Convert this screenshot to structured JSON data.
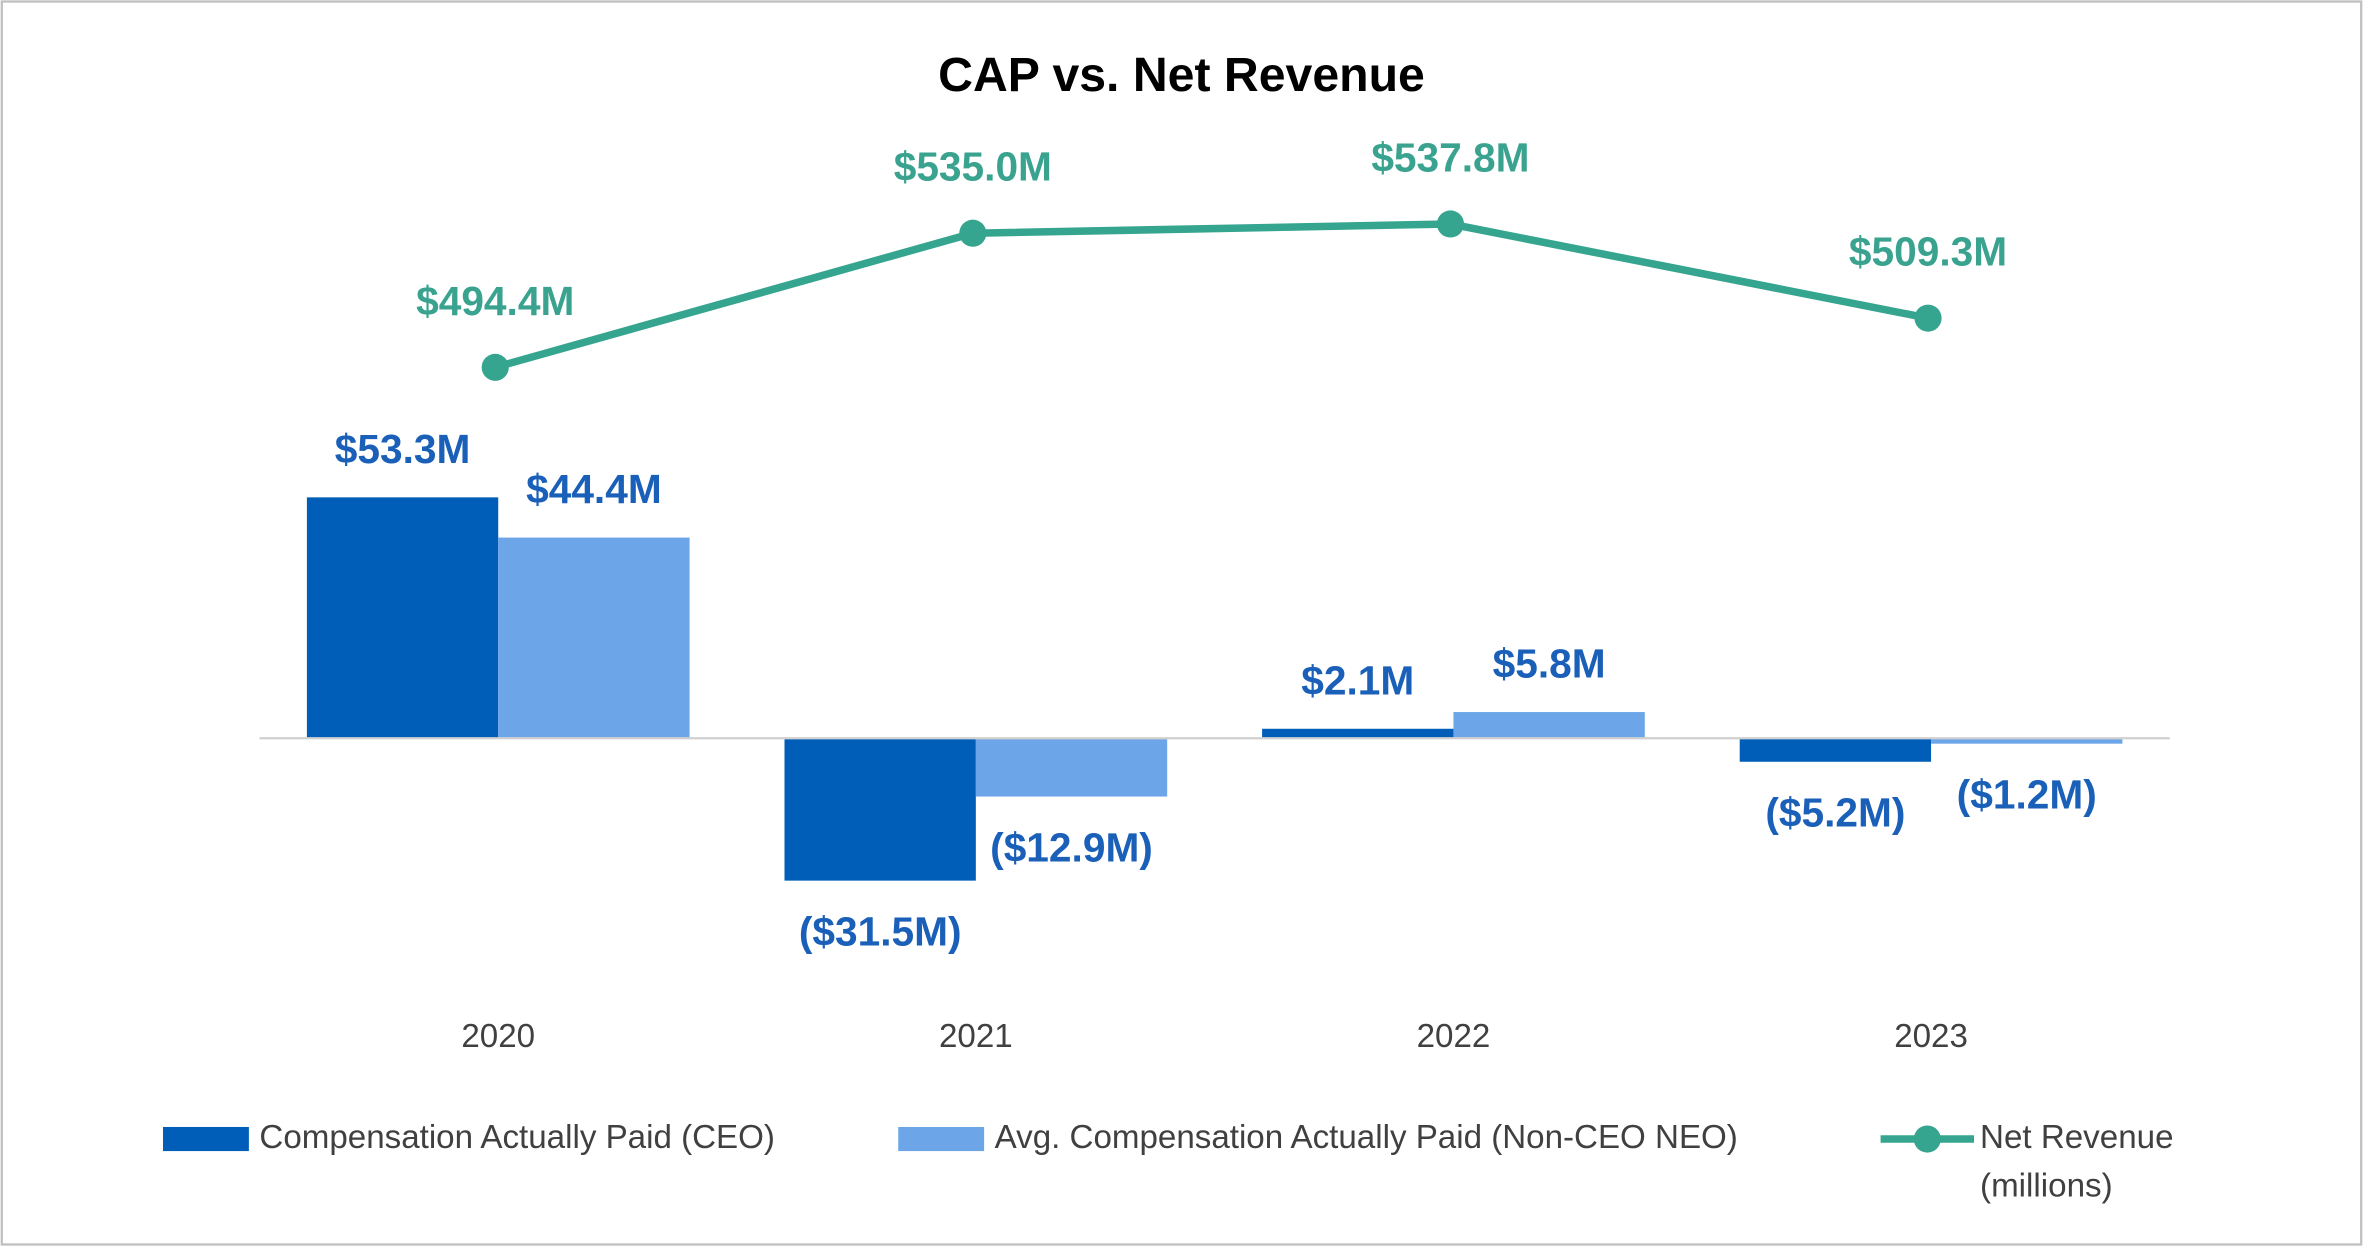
{
  "chart_data": {
    "type": "bar",
    "title": "CAP vs. Net Revenue",
    "categories": [
      "2020",
      "2021",
      "2022",
      "2023"
    ],
    "ylim": [
      -60,
      130
    ],
    "y2lim": [
      300,
      560
    ],
    "series": [
      {
        "name": "Compensation Actually Paid (CEO)",
        "color": "#005EB8",
        "type": "bar",
        "values": [
          53.3,
          -31.5,
          2.1,
          -5.2
        ],
        "value_labels": [
          "$53.3M",
          "($31.5M)",
          "$2.1M",
          "($5.2M)"
        ]
      },
      {
        "name": "Avg. Compensation Actually Paid (Non-CEO NEO)",
        "color": "#6CA6E8",
        "type": "bar",
        "values": [
          44.4,
          -12.9,
          5.8,
          -1.2
        ],
        "value_labels": [
          "$44.4M",
          "($12.9M)",
          "$5.8M",
          "($1.2M)"
        ]
      },
      {
        "name": "Net Revenue (millions)",
        "color": "#35A590",
        "type": "line",
        "axis": "y2",
        "values": [
          494.4,
          535.0,
          537.8,
          509.3
        ],
        "value_labels": [
          "$494.4M",
          "$535.0M",
          "$537.8M",
          "$509.3M"
        ]
      }
    ],
    "label_color": "#1A5FB8",
    "line_label_color": "#3AA38F"
  }
}
